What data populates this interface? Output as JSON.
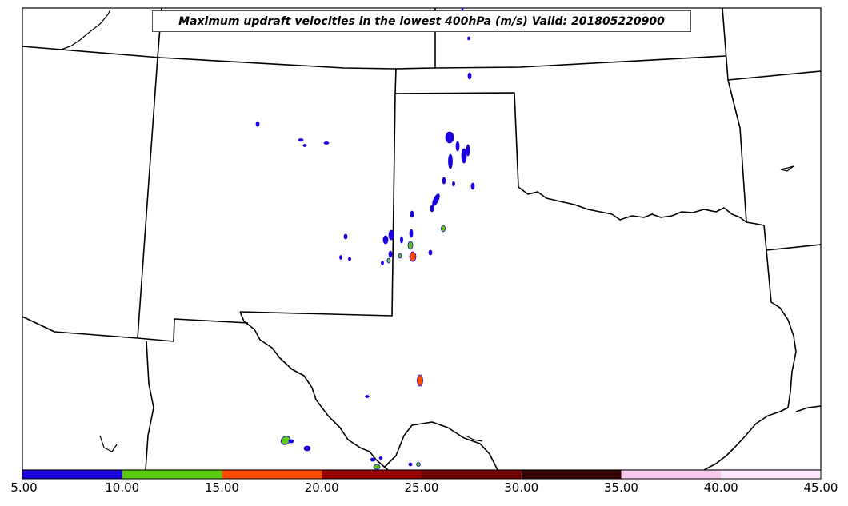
{
  "title": "Maximum updraft velocities in the lowest 400hPa (m/s) Valid: 201805220900",
  "colorbar": {
    "min": 5,
    "max": 45,
    "tick_labels": [
      "5.00",
      "10.00",
      "15.00",
      "20.00",
      "25.00",
      "30.00",
      "35.00",
      "40.00",
      "45.00"
    ],
    "bins": [
      {
        "from": 5,
        "to": 10,
        "color": "#1a00e0"
      },
      {
        "from": 10,
        "to": 15,
        "color": "#5ccc10"
      },
      {
        "from": 15,
        "to": 20,
        "color": "#ff4a00"
      },
      {
        "from": 20,
        "to": 25,
        "color": "#980000"
      },
      {
        "from": 25,
        "to": 30,
        "color": "#700000"
      },
      {
        "from": 30,
        "to": 35,
        "color": "#350000"
      },
      {
        "from": 35,
        "to": 40,
        "color": "#f8c8f0"
      },
      {
        "from": 40,
        "to": 45,
        "color": "#ffe8ff"
      }
    ]
  },
  "colors": {
    "border": "#000000",
    "background": "#ffffff"
  }
}
